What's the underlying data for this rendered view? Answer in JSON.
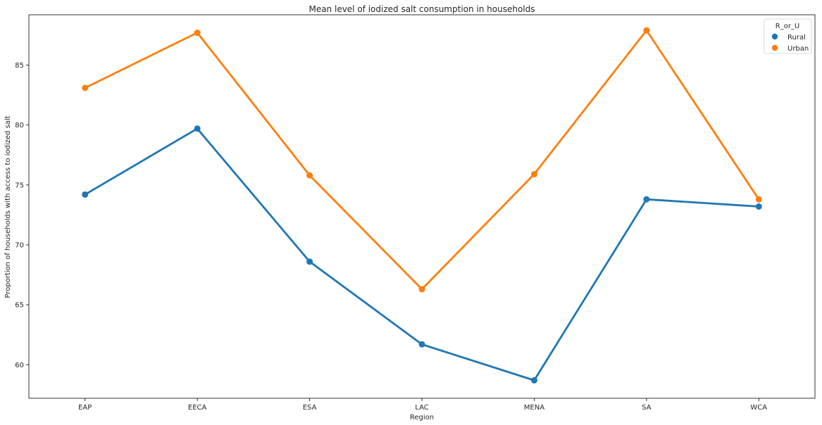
{
  "chart_data": {
    "type": "line",
    "title": "Mean level of iodized salt consumption in households",
    "xlabel": "Region",
    "ylabel": "Proportion of households with access to iodized salt",
    "categories": [
      "EAP",
      "EECA",
      "ESA",
      "LAC",
      "MENA",
      "SA",
      "WCA"
    ],
    "ylim": [
      57.2,
      89.2
    ],
    "yticks": [
      60,
      65,
      70,
      75,
      80,
      85
    ],
    "grid": false,
    "legend": {
      "title": "R_or_U",
      "position": "top-right"
    },
    "series": [
      {
        "name": "Rural",
        "color": "#1f77b4",
        "values": [
          74.2,
          79.7,
          68.6,
          61.7,
          58.7,
          73.8,
          73.2
        ]
      },
      {
        "name": "Urban",
        "color": "#ff7f0e",
        "values": [
          83.1,
          87.7,
          75.8,
          66.3,
          75.9,
          87.9,
          73.8
        ]
      }
    ]
  }
}
